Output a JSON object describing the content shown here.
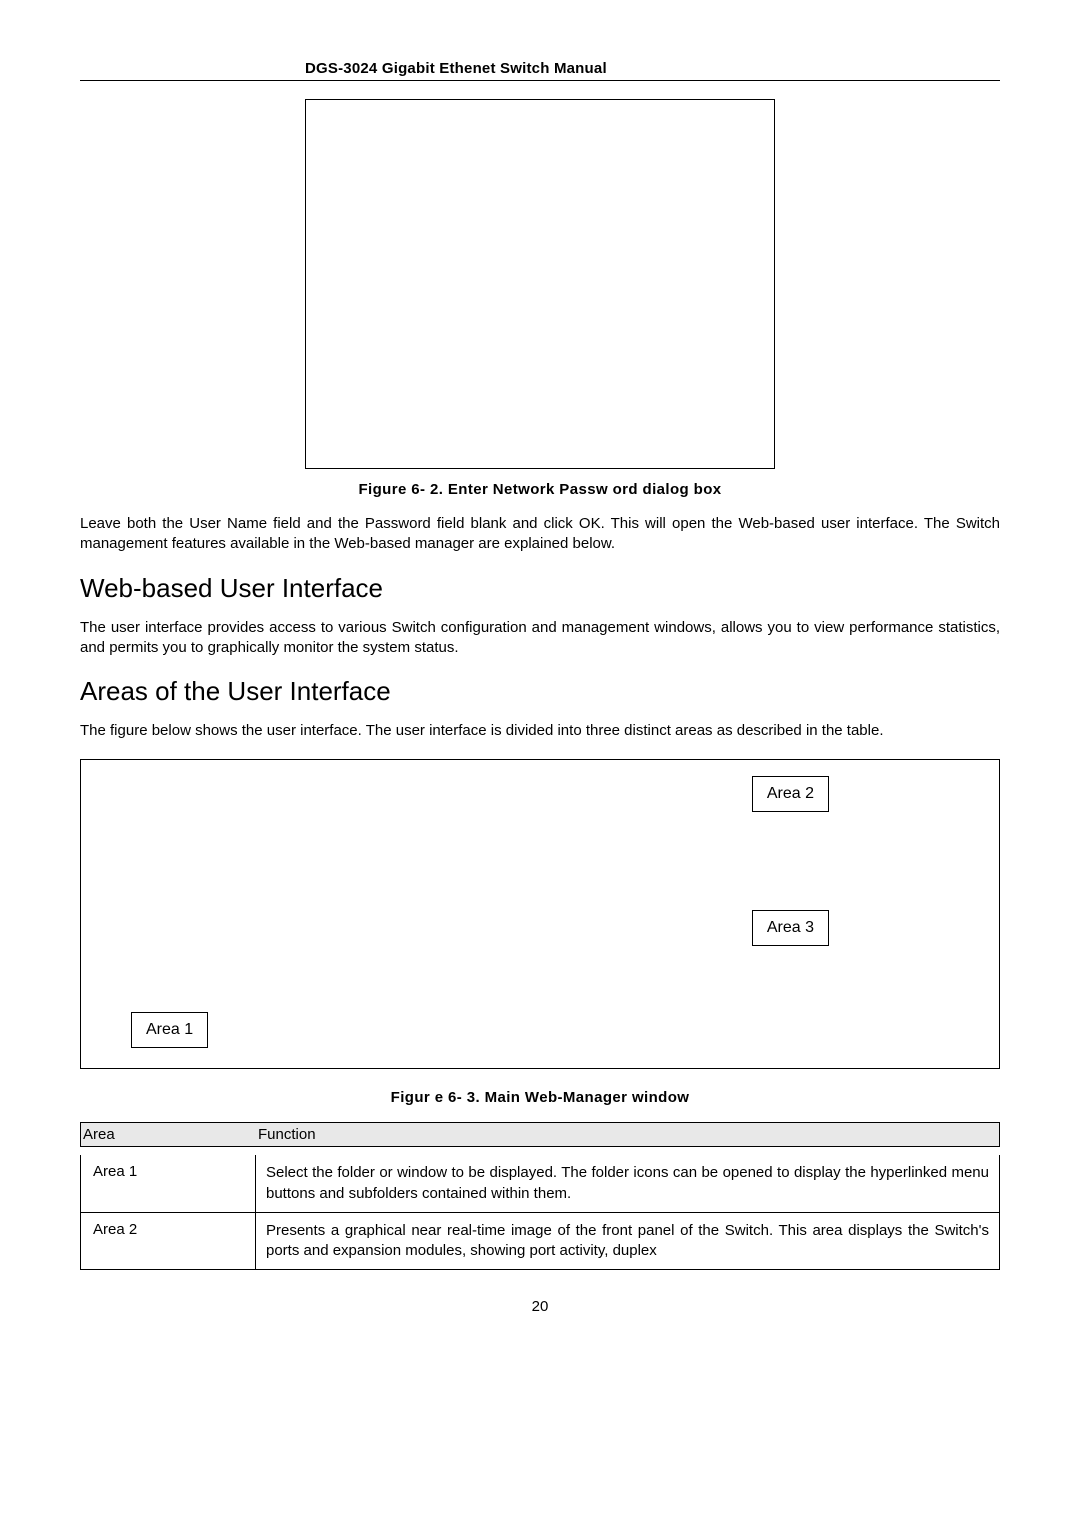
{
  "header": {
    "title": "DGS-3024 Gigabit Ethenet Switch Manual"
  },
  "figure_62": {
    "caption": "Figure 6- 2.  Enter Network Passw ord dialog box"
  },
  "para_after_62": "Leave both the User Name field and the Password field blank and click OK. This will open the Web-based user interface. The Switch management features available in the Web-based manager are explained below.",
  "section_web": {
    "heading": "Web-based User Interface",
    "para": "The user interface provides access to various Switch configuration and management windows, allows you to view performance statistics, and permits you to graphically monitor the system status."
  },
  "section_areas": {
    "heading": "Areas of the User Interface",
    "para": "The figure below shows the user interface. The user interface is divided into three distinct areas as described in the table."
  },
  "figure_63": {
    "area2": "Area 2",
    "area3": "Area 3",
    "area1": "Area 1",
    "caption": "Figur e 6- 3.  Main Web-Manager window"
  },
  "func_table": {
    "header_area": "Area",
    "header_function": "Function",
    "rows": [
      {
        "area": "Area 1",
        "function": "Select the folder or window to be displayed. The folder icons can be opened to display the hyperlinked menu buttons and subfolders contained within them."
      },
      {
        "area": "Area 2",
        "function": "Presents a graphical near real-time image of the front panel of the Switch. This area displays the Switch's ports and expansion modules, showing port activity, duplex"
      }
    ]
  },
  "page_number": "20"
}
